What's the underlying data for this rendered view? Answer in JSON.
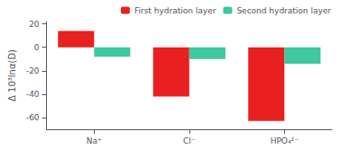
{
  "chart_data": {
    "type": "bar",
    "categories": [
      "Na⁺",
      "Cl⁻",
      "HPO₄²⁻"
    ],
    "series": [
      {
        "name": "First hydration layer",
        "color": "#e82020",
        "values": [
          14,
          -42,
          -63
        ]
      },
      {
        "name": "Second hydration layer",
        "color": "#3ec8a0",
        "values": [
          -8,
          -10,
          -14
        ]
      }
    ],
    "ylabel": "Δ 10³lnα(D)",
    "ylim": [
      -70,
      22
    ],
    "yticks": [
      20,
      0,
      -20,
      -40,
      -60
    ],
    "legend": "upper right",
    "grid": false
  }
}
